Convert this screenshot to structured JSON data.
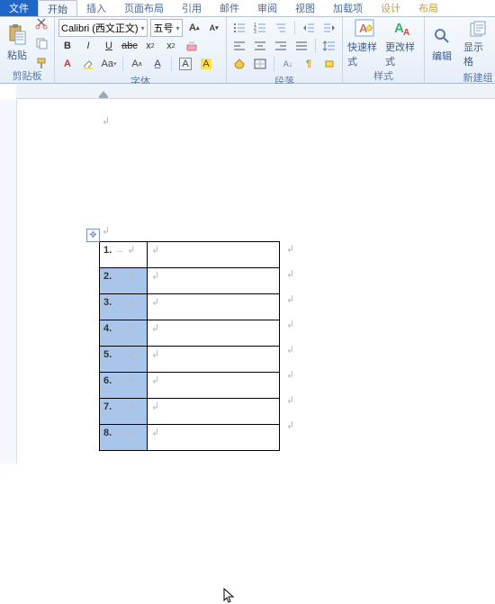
{
  "tabs": {
    "file": "文件",
    "home": "开始",
    "insert": "插入",
    "pagelayout": "页面布局",
    "references": "引用",
    "mail": "邮件",
    "review": "审阅",
    "view": "视图",
    "addins": "加载项",
    "design": "设计",
    "layout": "布局"
  },
  "clipboard": {
    "paste": "粘贴",
    "group": "剪贴板"
  },
  "font": {
    "name": "Calibri (西文正文)",
    "size": "五号",
    "group": "字体",
    "bold": "B",
    "italic": "I",
    "underline": "U"
  },
  "paragraph": {
    "group": "段落"
  },
  "styles": {
    "quick": "快速样式",
    "change": "更改样式",
    "group": "样式"
  },
  "editing": {
    "edit": "编辑",
    "show": "显示格",
    "newgroup": "新建组"
  },
  "table": {
    "rows": [
      {
        "n": "1.",
        "sel": false
      },
      {
        "n": "2.",
        "sel": true
      },
      {
        "n": "3.",
        "sel": true
      },
      {
        "n": "4.",
        "sel": true
      },
      {
        "n": "5.",
        "sel": true
      },
      {
        "n": "6.",
        "sel": true
      },
      {
        "n": "7.",
        "sel": true
      },
      {
        "n": "8.",
        "sel": true
      }
    ],
    "arrow": "→ ↲",
    "pm": "↲"
  },
  "colors": {
    "accent": "#1e66c7",
    "sel": "#a9c6ea",
    "ribbon1": "#f6f9fd",
    "ribbon2": "#e6eef8"
  }
}
